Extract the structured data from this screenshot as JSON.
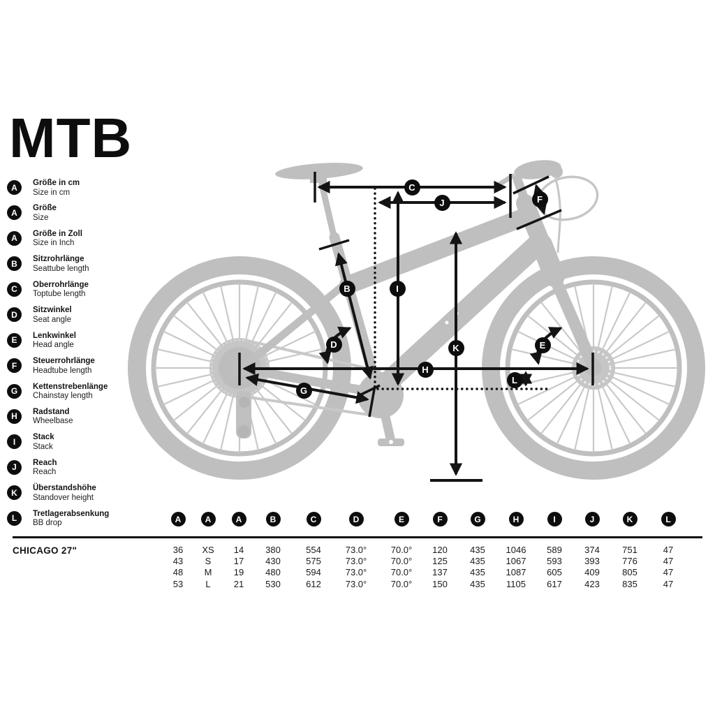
{
  "logo": {
    "title": "MTB"
  },
  "legend": {
    "items": [
      {
        "letter": "A",
        "de": "Größe in cm",
        "en": "Size in cm"
      },
      {
        "letter": "A",
        "de": "Größe",
        "en": "Size"
      },
      {
        "letter": "A",
        "de": "Größe in Zoll",
        "en": "Size in Inch"
      },
      {
        "letter": "B",
        "de": "Sitzrohrlänge",
        "en": "Seattube length"
      },
      {
        "letter": "C",
        "de": "Oberrohrlänge",
        "en": "Toptube length"
      },
      {
        "letter": "D",
        "de": "Sitzwinkel",
        "en": "Seat angle"
      },
      {
        "letter": "E",
        "de": "Lenkwinkel",
        "en": "Head angle"
      },
      {
        "letter": "F",
        "de": "Steuerrohrlänge",
        "en": "Headtube length"
      },
      {
        "letter": "G",
        "de": "Kettenstrebenlänge",
        "en": "Chainstay length"
      },
      {
        "letter": "H",
        "de": "Radstand",
        "en": "Wheelbase"
      },
      {
        "letter": "I",
        "de": "Stack",
        "en": "Stack"
      },
      {
        "letter": "J",
        "de": "Reach",
        "en": "Reach"
      },
      {
        "letter": "K",
        "de": "Überstandshöhe",
        "en": "Standover height"
      },
      {
        "letter": "L",
        "de": "Tretlagerabsenkung",
        "en": "BB drop"
      }
    ]
  },
  "diagram": {
    "badges": [
      "B",
      "C",
      "D",
      "E",
      "F",
      "G",
      "H",
      "I",
      "J",
      "K",
      "L"
    ]
  },
  "table": {
    "model": "CHICAGO 27\"",
    "columns": [
      "A",
      "A",
      "A",
      "B",
      "C",
      "D",
      "E",
      "F",
      "G",
      "H",
      "I",
      "J",
      "K",
      "L"
    ],
    "rows": [
      [
        "36",
        "XS",
        "14",
        "380",
        "554",
        "73.0°",
        "70.0°",
        "120",
        "435",
        "1046",
        "589",
        "374",
        "751",
        "47"
      ],
      [
        "43",
        "S",
        "17",
        "430",
        "575",
        "73.0°",
        "70.0°",
        "125",
        "435",
        "1067",
        "593",
        "393",
        "776",
        "47"
      ],
      [
        "48",
        "M",
        "19",
        "480",
        "594",
        "73.0°",
        "70.0°",
        "137",
        "435",
        "1087",
        "605",
        "409",
        "805",
        "47"
      ],
      [
        "53",
        "L",
        "21",
        "530",
        "612",
        "73.0°",
        "70.0°",
        "150",
        "435",
        "1105",
        "617",
        "423",
        "835",
        "47"
      ]
    ]
  },
  "colors": {
    "accent": "#0d0d0d",
    "silhouette": "#bfbfbf"
  }
}
